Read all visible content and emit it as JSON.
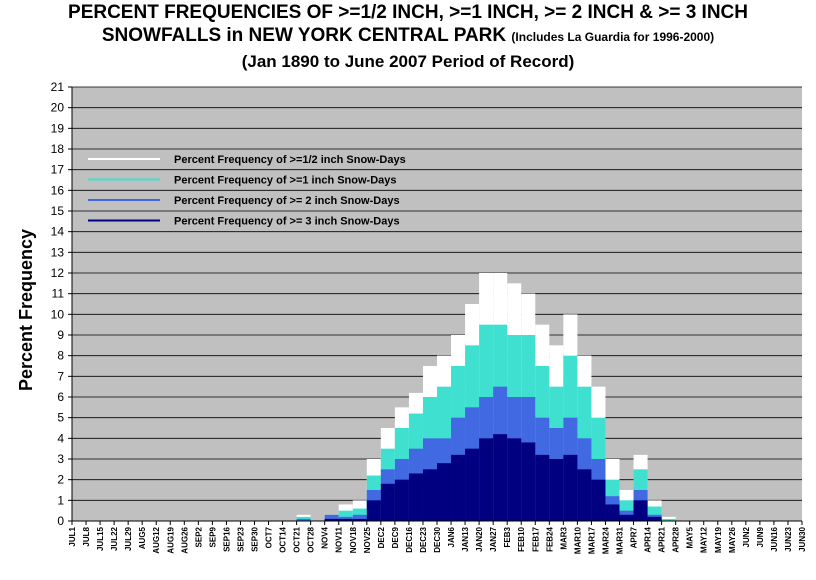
{
  "title": {
    "line1": "PERCENT FREQUENCIES OF >=1/2 INCH, >=1 INCH, >= 2 INCH & >= 3 INCH",
    "line2_main": "SNOWFALLS in NEW YORK CENTRAL PARK",
    "line2_note": "(Includes La Guardia for 1996-2000)",
    "line3": "(Jan 1890 to June 2007 Period of Record)"
  },
  "colors": {
    "plot_bg": "#c0c0c0",
    "grid": "#000000",
    "s_half": "#ffffff",
    "s_one": "#40e0d0",
    "s_two": "#4169e1",
    "s_three": "#000080"
  },
  "chart_data": {
    "type": "area",
    "ylabel": "Percent Frequency",
    "ylim": [
      0,
      21
    ],
    "yticks": [
      0,
      1,
      2,
      3,
      4,
      5,
      6,
      7,
      8,
      9,
      10,
      11,
      12,
      13,
      14,
      15,
      16,
      17,
      18,
      19,
      20,
      21
    ],
    "grid": true,
    "legend_position": "top-left",
    "x_tick_labels": [
      "JUL1",
      "JUL8",
      "JUL15",
      "JUL22",
      "JUL29",
      "AUG5",
      "AUG12",
      "AUG19",
      "AUG26",
      "SEP2",
      "SEP9",
      "SEP16",
      "SEP23",
      "SEP30",
      "OCT7",
      "OCT14",
      "OCT21",
      "OCT28",
      "NOV4",
      "NOV11",
      "NOV18",
      "NOV25",
      "DEC2",
      "DEC9",
      "DEC16",
      "DEC23",
      "DEC30",
      "JAN6",
      "JAN13",
      "JAN20",
      "JAN27",
      "FEB3",
      "FEB10",
      "FEB17",
      "FEB24",
      "MAR3",
      "MAR10",
      "MAR17",
      "MAR24",
      "MAR31",
      "APR7",
      "APR14",
      "APR21",
      "APR28",
      "MAY5",
      "MAY12",
      "MAY19",
      "MAY26",
      "JUN2",
      "JUN9",
      "JUN16",
      "JUN23",
      "JUN30"
    ],
    "x": [
      "OCT21",
      "NOV4",
      "NOV11",
      "NOV18",
      "NOV25",
      "DEC2",
      "DEC9",
      "DEC16",
      "DEC23",
      "DEC30",
      "JAN6",
      "JAN13",
      "JAN20",
      "JAN27",
      "FEB3",
      "FEB10",
      "FEB17",
      "FEB24",
      "MAR3",
      "MAR10",
      "MAR17",
      "MAR24",
      "MAR31",
      "APR7",
      "APR14",
      "APR21"
    ],
    "series": [
      {
        "name": "Percent Frequency of  >=1/2 inch Snow-Days",
        "values": [
          0.3,
          0.3,
          0.8,
          1.0,
          3.0,
          4.5,
          5.5,
          6.2,
          7.5,
          8.0,
          9.0,
          10.5,
          12.0,
          12.0,
          11.5,
          11.0,
          9.5,
          8.5,
          10.0,
          8.0,
          6.5,
          3.0,
          1.5,
          3.2,
          1.0,
          0.2
        ]
      },
      {
        "name": "Percent Frequency of  >=1 inch Snow-Days",
        "values": [
          0.2,
          0.2,
          0.5,
          0.6,
          2.2,
          3.5,
          4.5,
          5.2,
          6.0,
          6.5,
          7.5,
          8.5,
          9.5,
          9.5,
          9.0,
          9.0,
          7.5,
          6.5,
          8.0,
          6.5,
          5.0,
          2.0,
          1.0,
          2.5,
          0.7,
          0.1
        ]
      },
      {
        "name": "Percent Frequency of  >= 2 inch Snow-Days",
        "values": [
          0.1,
          0.3,
          0.2,
          0.3,
          1.5,
          2.5,
          3.0,
          3.5,
          4.0,
          4.0,
          5.0,
          5.5,
          6.0,
          6.5,
          6.0,
          6.0,
          5.0,
          4.5,
          5.0,
          4.0,
          3.0,
          1.2,
          0.5,
          1.5,
          0.3,
          0.0
        ]
      },
      {
        "name": "Percent Frequency of  >= 3 inch Snow-Days",
        "values": [
          0.0,
          0.1,
          0.1,
          0.1,
          1.0,
          1.8,
          2.0,
          2.3,
          2.5,
          2.8,
          3.2,
          3.5,
          4.0,
          4.2,
          4.0,
          3.8,
          3.2,
          3.0,
          3.2,
          2.5,
          2.0,
          0.8,
          0.3,
          1.0,
          0.2,
          0.0
        ]
      }
    ]
  }
}
